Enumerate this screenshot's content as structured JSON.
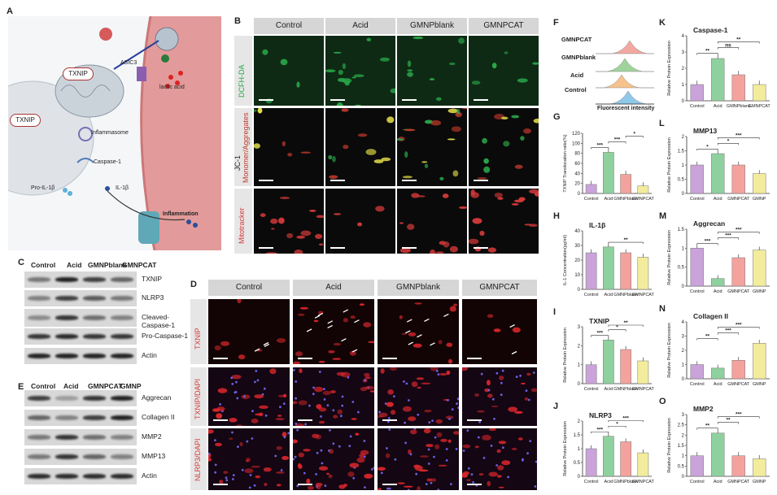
{
  "panel_labels": {
    "A": "A",
    "B": "B",
    "C": "C",
    "D": "D",
    "E": "E",
    "F": "F",
    "G": "G",
    "H": "H",
    "I": "I",
    "J": "J",
    "K": "K",
    "L": "L",
    "M": "M",
    "N": "N",
    "O": "O"
  },
  "schematic": {
    "labels": [
      "TXNIP",
      "TXNIP",
      "ASIC3",
      "lactic acid",
      "Inflammasome",
      "Caspase-1",
      "Pro-IL-1β",
      "IL-1β",
      "Inflammation"
    ],
    "colors": {
      "cell_membrane": "#e8a3a3",
      "nucleus": "#e9ecef",
      "mito": "#cfd6dc"
    }
  },
  "panel_b": {
    "columns": [
      "Control",
      "Acid",
      "GMNPblank",
      "GMNPCAT"
    ],
    "rows": [
      {
        "label": "DCFH-DA",
        "color": "#2aa84a"
      },
      {
        "label": "JC-1",
        "label2": "Monomer/Aggregates",
        "color": "#c0392b"
      },
      {
        "label": "Mitotracker",
        "color": "#d63a3a"
      }
    ]
  },
  "panel_c": {
    "lanes": [
      "Control",
      "Acid",
      "GMNPblank",
      "GMNPCAT"
    ],
    "rows": [
      "TXNIP",
      "NLRP3",
      "Cleaved-Caspase-1",
      "Pro-Caspase-1",
      "Actin"
    ]
  },
  "panel_d": {
    "columns": [
      "Control",
      "Acid",
      "GMNPblank",
      "GMNPCAT"
    ],
    "rows": [
      "TXNIP",
      "TXNIP/DAPI",
      "NLRP3/DAPI"
    ]
  },
  "panel_e": {
    "lanes": [
      "Control",
      "Acid",
      "GMNPCAT",
      "GMNP"
    ],
    "rows": [
      "Aggrecan",
      "Collagen II",
      "MMP2",
      "MMP13",
      "Actin"
    ]
  },
  "panel_f": {
    "rows": [
      "GMNPCAT",
      "GMNPblank",
      "Acid",
      "Control"
    ],
    "xlabel": "Fluorescent intensity",
    "colors": [
      "#f2a7a0",
      "#9fd39a",
      "#f6c28b",
      "#8fc8ea"
    ]
  },
  "chart_colors": [
    "#c9a3d9",
    "#8fd19e",
    "#f4a29e",
    "#f3ec9c"
  ],
  "chart_data": [
    {
      "id": "G",
      "type": "bar",
      "title": "",
      "ylabel": "TXNIP Translocation ratio(%)",
      "categories": [
        "Control",
        "Acid",
        "GMNPblank",
        "GMNPCAT"
      ],
      "values": [
        18,
        82,
        38,
        15
      ],
      "ylim": [
        0,
        120
      ],
      "yticks": [
        0,
        20,
        40,
        60,
        80,
        100,
        120
      ],
      "sig": [
        [
          "***",
          0,
          1
        ],
        [
          "***",
          1,
          2
        ],
        [
          "*",
          2,
          3
        ]
      ]
    },
    {
      "id": "H",
      "type": "bar",
      "title": "IL-1β",
      "ylabel": "IL-1 Concentration(pg/ml)",
      "categories": [
        "Control",
        "Acid",
        "GMNPblank",
        "GMNPCAT"
      ],
      "values": [
        25,
        29,
        25,
        22
      ],
      "ylim": [
        0,
        40
      ],
      "yticks": [
        0,
        10,
        20,
        30,
        40
      ],
      "sig": [
        [
          "**",
          1,
          3
        ]
      ]
    },
    {
      "id": "I",
      "type": "bar",
      "title": "TXNIP",
      "ylabel": "Relative Protein Expression",
      "categories": [
        "Control",
        "Acid",
        "GMNPblank",
        "GMNPCAT"
      ],
      "values": [
        1.0,
        2.3,
        1.8,
        1.2
      ],
      "ylim": [
        0,
        3
      ],
      "yticks": [
        0,
        1,
        2,
        3
      ],
      "sig": [
        [
          "***",
          0,
          1
        ],
        [
          "*",
          1,
          2
        ],
        [
          "**",
          1,
          3
        ]
      ]
    },
    {
      "id": "J",
      "type": "bar",
      "title": "NLRP3",
      "ylabel": "Relative Protein Expression",
      "categories": [
        "Control",
        "Acid",
        "GMNPblank",
        "GMNPCAT"
      ],
      "values": [
        1.0,
        1.45,
        1.25,
        0.85
      ],
      "ylim": [
        0,
        2.0
      ],
      "yticks": [
        0,
        0.5,
        1.0,
        1.5,
        2.0
      ],
      "sig": [
        [
          "***",
          0,
          1
        ],
        [
          "*",
          1,
          2
        ],
        [
          "***",
          1,
          3
        ]
      ]
    },
    {
      "id": "K",
      "type": "bar",
      "title": "Caspase-1",
      "ylabel": "Relative Protein Expression",
      "categories": [
        "Control",
        "Acid",
        "GMNPblank",
        "GMNPCAT"
      ],
      "values": [
        1.0,
        2.6,
        1.6,
        1.0
      ],
      "ylim": [
        0,
        4
      ],
      "yticks": [
        0,
        1,
        2,
        3,
        4
      ],
      "sig": [
        [
          "**",
          0,
          1
        ],
        [
          "ns",
          1,
          2
        ],
        [
          "**",
          1,
          3
        ]
      ]
    },
    {
      "id": "L",
      "type": "bar",
      "title": "MMP13",
      "ylabel": "Relative Protein Expression",
      "categories": [
        "Control",
        "Acid",
        "GMNPCAT",
        "GMNP"
      ],
      "values": [
        1.0,
        1.4,
        1.0,
        0.7
      ],
      "ylim": [
        0,
        2.0
      ],
      "yticks": [
        0,
        0.5,
        1.0,
        1.5,
        2.0
      ],
      "sig": [
        [
          "*",
          0,
          1
        ],
        [
          "*",
          1,
          2
        ],
        [
          "***",
          1,
          3
        ]
      ]
    },
    {
      "id": "M",
      "type": "bar",
      "title": "Aggrecan",
      "ylabel": "Relative Protein Expression",
      "categories": [
        "Control",
        "Acid",
        "GMNPCAT",
        "GMNP"
      ],
      "values": [
        1.0,
        0.2,
        0.75,
        0.95
      ],
      "ylim": [
        0,
        1.5
      ],
      "yticks": [
        0,
        0.5,
        1.0,
        1.5
      ],
      "sig": [
        [
          "***",
          0,
          1
        ],
        [
          "***",
          1,
          2
        ],
        [
          "***",
          1,
          3
        ]
      ]
    },
    {
      "id": "N",
      "type": "bar",
      "title": "Collagen II",
      "ylabel": "Relative Protein Expression",
      "categories": [
        "Control",
        "Acid",
        "GMNPCAT",
        "GMNP"
      ],
      "values": [
        1.0,
        0.75,
        1.3,
        2.5
      ],
      "ylim": [
        0,
        4
      ],
      "yticks": [
        0,
        1,
        2,
        3,
        4
      ],
      "sig": [
        [
          "**",
          0,
          1
        ],
        [
          "***",
          1,
          2
        ],
        [
          "***",
          1,
          3
        ]
      ]
    },
    {
      "id": "O",
      "type": "bar",
      "title": "MMP2",
      "ylabel": "Relative Protein Expression",
      "categories": [
        "Control",
        "Acid",
        "GMNPCAT",
        "GMNP"
      ],
      "values": [
        1.0,
        2.1,
        1.0,
        0.85
      ],
      "ylim": [
        0,
        3.0
      ],
      "yticks": [
        0,
        0.5,
        1.0,
        1.5,
        2.0,
        2.5,
        3.0
      ],
      "sig": [
        [
          "**",
          0,
          1
        ],
        [
          "**",
          1,
          2
        ],
        [
          "***",
          1,
          3
        ]
      ]
    }
  ]
}
